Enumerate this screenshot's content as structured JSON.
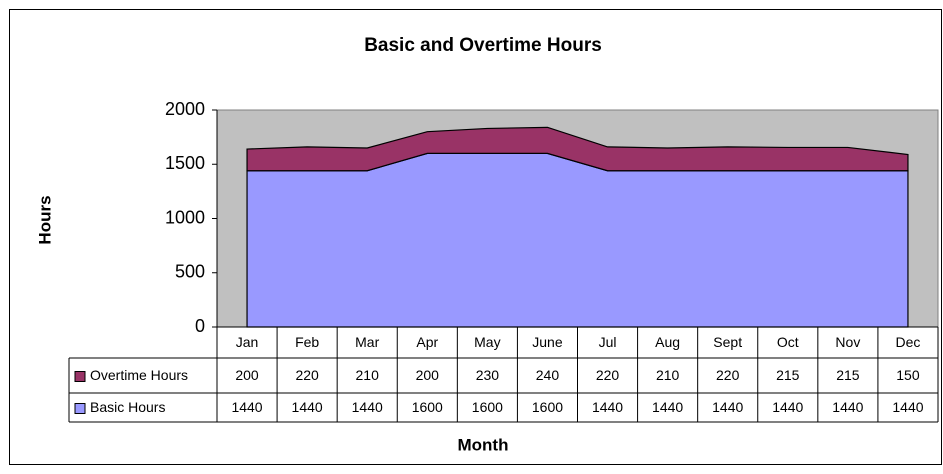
{
  "chart_data": {
    "type": "stacked_area",
    "title": "Basic and Overtime Hours",
    "x_label": "Month",
    "y_label": "Hours",
    "categories": [
      "Jan",
      "Feb",
      "Mar",
      "Apr",
      "May",
      "June",
      "Jul",
      "Aug",
      "Sept",
      "Oct",
      "Nov",
      "Dec"
    ],
    "series": [
      {
        "name": "Overtime Hours",
        "color": "#993366",
        "values": [
          200,
          220,
          210,
          200,
          230,
          240,
          220,
          210,
          220,
          215,
          215,
          150
        ]
      },
      {
        "name": "Basic Hours",
        "color": "#9999ff",
        "values": [
          1440,
          1440,
          1440,
          1600,
          1600,
          1600,
          1440,
          1440,
          1440,
          1440,
          1440,
          1440
        ]
      }
    ],
    "ylim": [
      0,
      2000
    ],
    "yticks": [
      0,
      500,
      1000,
      1500,
      2000
    ],
    "grid": false,
    "plot_background": "#c0c0c0"
  }
}
